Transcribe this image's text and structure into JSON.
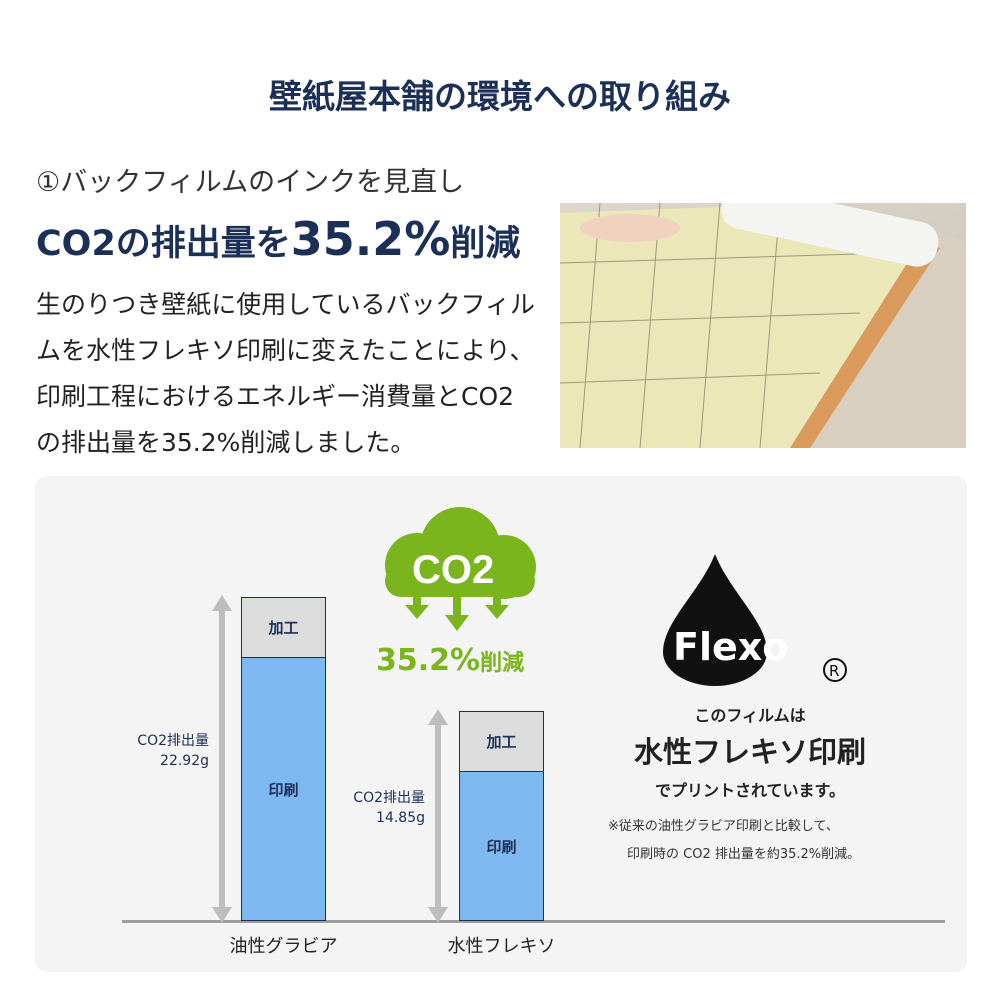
{
  "title": "壁紙屋本舗の環境への取り組み",
  "section": {
    "subtitle": "①バックフィルムのインクを見直し",
    "headline_pre": "CO2の排出量を",
    "headline_value": "35.2%",
    "headline_post": "削減",
    "body": "生のりつき壁紙に使用しているバックフィルムを水性フレキソ印刷に変えたことにより、印刷工程におけるエネルギー消費量とCO2の排出量を35.2%削減しました。"
  },
  "infographic": {
    "co2_icon_label": "CO2",
    "reduction": "35.2%",
    "reduction_suffix": "削減",
    "colors": {
      "green": "#7ab51d",
      "print_bar": "#7db8f0",
      "processing_bar": "#dcdcdc",
      "navy": "#1b2f57"
    },
    "flexo_logo": "Flexo",
    "flexo_text1": "このフィルムは",
    "flexo_text2": "水性フレキソ印刷",
    "flexo_text3": "でプリントされています。",
    "note1": "※従来の油性グラビア印刷と比較して、",
    "note2": "印刷時の CO2 排出量を約35.2%削減。"
  },
  "chart_data": {
    "type": "bar",
    "stacked": true,
    "categories": [
      "油性グラビア",
      "水性フレキソ"
    ],
    "segment_labels": [
      "印刷",
      "加工"
    ],
    "totals": [
      22.92,
      14.85
    ],
    "total_labels": [
      "CO2排出量",
      "CO2排出量"
    ],
    "total_texts": [
      "22.92g",
      "14.85g"
    ],
    "unit": "g"
  }
}
